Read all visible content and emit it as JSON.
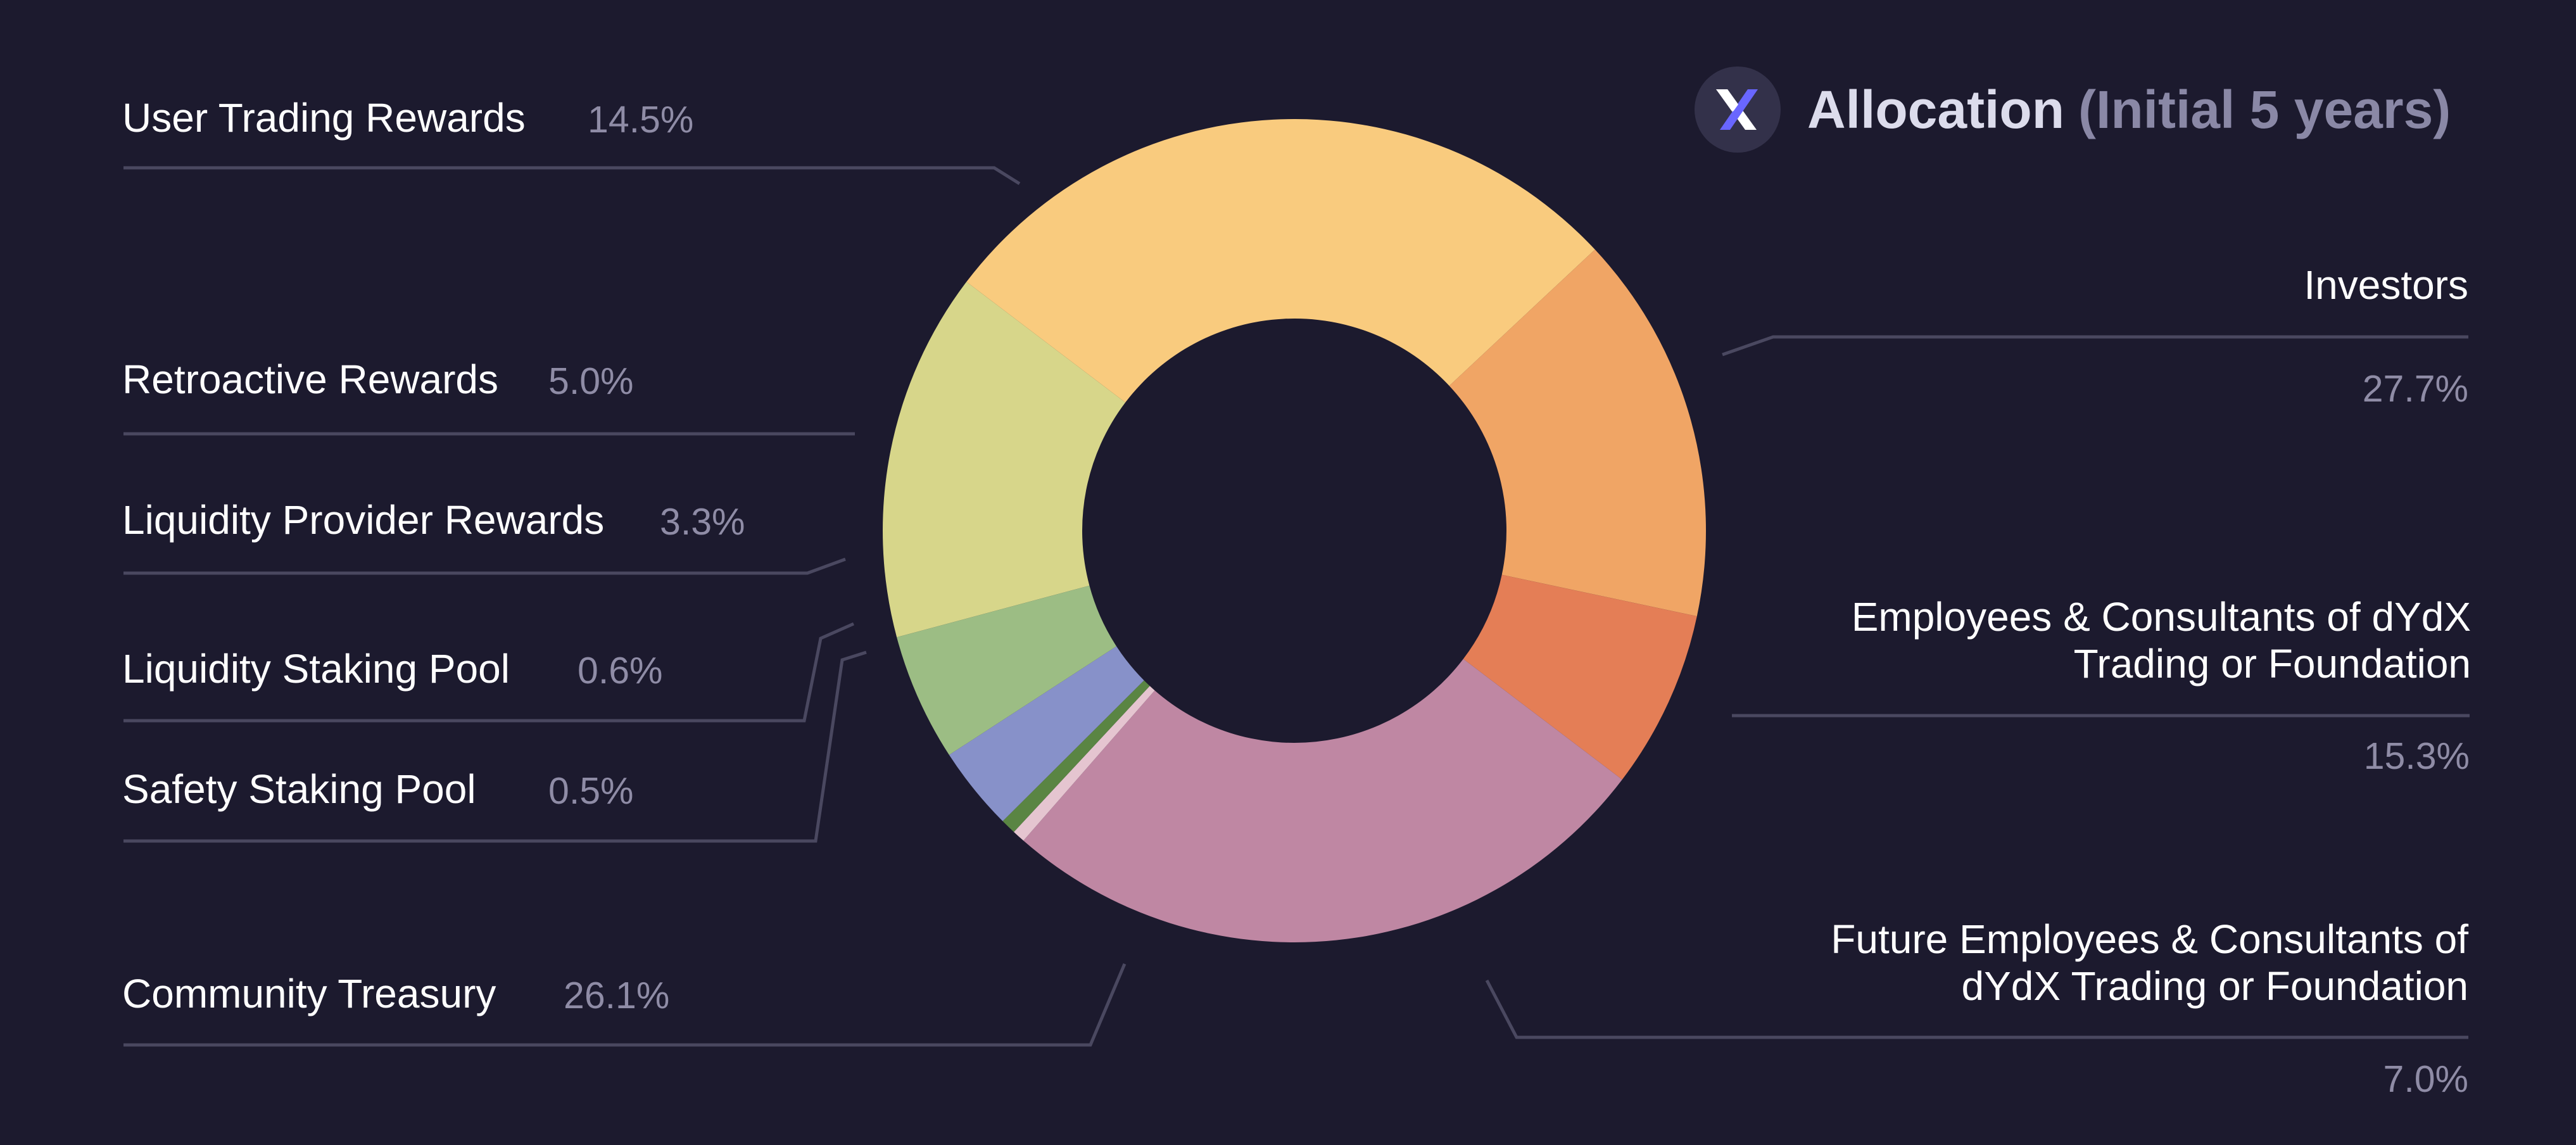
{
  "header": {
    "logo_icon": "dydx-x-logo-icon",
    "title": "Allocation",
    "subtitle": "(Initial 5 years)"
  },
  "colors": {
    "background": "#1c1a2e",
    "leader_line": "#4a4860",
    "value_text": "#8f8ca6"
  },
  "chart_data": {
    "type": "pie",
    "style": "donut",
    "title": "Allocation",
    "subtitle": "(Initial 5 years)",
    "unit": "%",
    "slices": [
      {
        "label": "Investors",
        "value": 27.7,
        "value_text": "27.7%",
        "color": "#f9cb7e"
      },
      {
        "label": "Employees & Consultants of dYdX Trading or Foundation",
        "value": 15.3,
        "value_text": "15.3%",
        "color": "#f0a565"
      },
      {
        "label": "Future Employees & Consultants of dYdX Trading or Foundation",
        "value": 7.0,
        "value_text": "7.0%",
        "color": "#e47e56"
      },
      {
        "label": "Community Treasury",
        "value": 26.1,
        "value_text": "26.1%",
        "color": "#bf87a3"
      },
      {
        "label": "Safety Staking Pool",
        "value": 0.5,
        "value_text": "0.5%",
        "color": "#e5c5d0"
      },
      {
        "label": "Liquidity Staking Pool",
        "value": 0.6,
        "value_text": "0.6%",
        "color": "#5a8543"
      },
      {
        "label": "Liquidity Provider Rewards",
        "value": 3.3,
        "value_text": "3.3%",
        "color": "#8791c9"
      },
      {
        "label": "Retroactive Rewards",
        "value": 5.0,
        "value_text": "5.0%",
        "color": "#9cbd84"
      },
      {
        "label": "User Trading Rewards",
        "value": 14.5,
        "value_text": "14.5%",
        "color": "#d7d68a"
      }
    ]
  }
}
